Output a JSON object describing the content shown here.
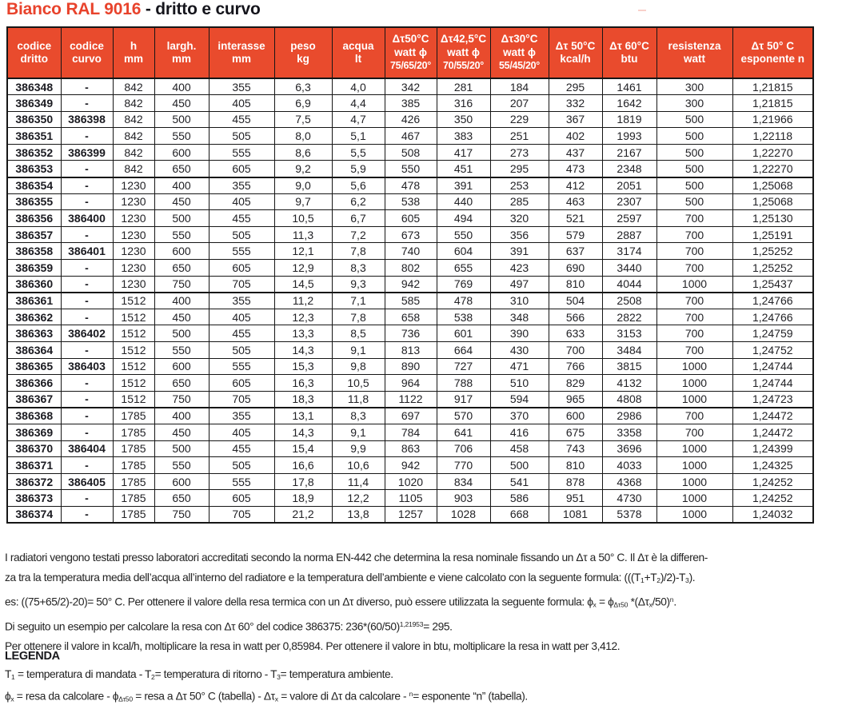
{
  "title": {
    "product": "Bianco RAL 9016",
    "variant": " - dritto e curvo"
  },
  "colors": {
    "header_red": "#e94b2d",
    "title_red": "#e8432c",
    "border_black": "#161616"
  },
  "table": {
    "columns": [
      {
        "id": "codice-dritto",
        "lines": [
          "codice",
          "dritto"
        ],
        "width": 67,
        "bold": true
      },
      {
        "id": "codice-curvo",
        "lines": [
          "codice",
          "curvo"
        ],
        "width": 65,
        "bold": true
      },
      {
        "id": "h-mm",
        "lines": [
          "h",
          "mm"
        ],
        "width": 52,
        "bold": false
      },
      {
        "id": "largh-mm",
        "lines": [
          "largh.",
          "mm"
        ],
        "width": 68,
        "bold": false
      },
      {
        "id": "interasse-mm",
        "lines": [
          "interasse",
          "mm"
        ],
        "width": 82,
        "bold": false
      },
      {
        "id": "peso-kg",
        "lines": [
          "peso",
          "kg"
        ],
        "width": 72,
        "bold": false
      },
      {
        "id": "acqua-lt",
        "lines": [
          "acqua",
          "lt"
        ],
        "width": 66,
        "bold": false
      },
      {
        "id": "watt-dt50",
        "lines": [
          "Δτ50°C",
          "watt ϕ",
          "75/65/20°"
        ],
        "width": 65,
        "bold": false
      },
      {
        "id": "watt-dt425",
        "lines": [
          "Δτ42,5°C",
          "watt ϕ",
          "70/55/20°"
        ],
        "width": 67,
        "bold": false
      },
      {
        "id": "watt-dt30",
        "lines": [
          "Δτ30°C",
          "watt ϕ",
          "55/45/20°"
        ],
        "width": 73,
        "bold": false
      },
      {
        "id": "kcalh-dt50",
        "lines": [
          "Δτ 50°C",
          "kcal/h"
        ],
        "width": 67,
        "bold": false
      },
      {
        "id": "btu-dt60",
        "lines": [
          "Δτ 60°C",
          "btu"
        ],
        "width": 68,
        "bold": false
      },
      {
        "id": "resistenza",
        "lines": [
          "resistenza",
          "watt"
        ],
        "width": 95,
        "bold": false
      },
      {
        "id": "esponente",
        "lines": [
          "Δτ 50° C",
          "esponente n"
        ],
        "width": 101,
        "bold": false
      }
    ],
    "rows": [
      [
        "386348",
        "-",
        "842",
        "400",
        "355",
        "6,3",
        "4,0",
        "342",
        "281",
        "184",
        "295",
        "1461",
        "300",
        "1,21815"
      ],
      [
        "386349",
        "-",
        "842",
        "450",
        "405",
        "6,9",
        "4,4",
        "385",
        "316",
        "207",
        "332",
        "1642",
        "300",
        "1,21815"
      ],
      [
        "386350",
        "386398",
        "842",
        "500",
        "455",
        "7,5",
        "4,7",
        "426",
        "350",
        "229",
        "367",
        "1819",
        "500",
        "1,21966"
      ],
      [
        "386351",
        "-",
        "842",
        "550",
        "505",
        "8,0",
        "5,1",
        "467",
        "383",
        "251",
        "402",
        "1993",
        "500",
        "1,22118"
      ],
      [
        "386352",
        "386399",
        "842",
        "600",
        "555",
        "8,6",
        "5,5",
        "508",
        "417",
        "273",
        "437",
        "2167",
        "500",
        "1,22270"
      ],
      [
        "386353",
        "-",
        "842",
        "650",
        "605",
        "9,2",
        "5,9",
        "550",
        "451",
        "295",
        "473",
        "2348",
        "500",
        "1,22270"
      ],
      [
        "386354",
        "-",
        "1230",
        "400",
        "355",
        "9,0",
        "5,6",
        "478",
        "391",
        "253",
        "412",
        "2051",
        "500",
        "1,25068"
      ],
      [
        "386355",
        "-",
        "1230",
        "450",
        "405",
        "9,7",
        "6,2",
        "538",
        "440",
        "285",
        "463",
        "2307",
        "500",
        "1,25068"
      ],
      [
        "386356",
        "386400",
        "1230",
        "500",
        "455",
        "10,5",
        "6,7",
        "605",
        "494",
        "320",
        "521",
        "2597",
        "700",
        "1,25130"
      ],
      [
        "386357",
        "-",
        "1230",
        "550",
        "505",
        "11,3",
        "7,2",
        "673",
        "550",
        "356",
        "579",
        "2887",
        "700",
        "1,25191"
      ],
      [
        "386358",
        "386401",
        "1230",
        "600",
        "555",
        "12,1",
        "7,8",
        "740",
        "604",
        "391",
        "637",
        "3174",
        "700",
        "1,25252"
      ],
      [
        "386359",
        "-",
        "1230",
        "650",
        "605",
        "12,9",
        "8,3",
        "802",
        "655",
        "423",
        "690",
        "3440",
        "700",
        "1,25252"
      ],
      [
        "386360",
        "-",
        "1230",
        "750",
        "705",
        "14,5",
        "9,3",
        "942",
        "769",
        "497",
        "810",
        "4044",
        "1000",
        "1,25437"
      ],
      [
        "386361",
        "-",
        "1512",
        "400",
        "355",
        "11,2",
        "7,1",
        "585",
        "478",
        "310",
        "504",
        "2508",
        "700",
        "1,24766"
      ],
      [
        "386362",
        "-",
        "1512",
        "450",
        "405",
        "12,3",
        "7,8",
        "658",
        "538",
        "348",
        "566",
        "2822",
        "700",
        "1,24766"
      ],
      [
        "386363",
        "386402",
        "1512",
        "500",
        "455",
        "13,3",
        "8,5",
        "736",
        "601",
        "390",
        "633",
        "3153",
        "700",
        "1,24759"
      ],
      [
        "386364",
        "-",
        "1512",
        "550",
        "505",
        "14,3",
        "9,1",
        "813",
        "664",
        "430",
        "700",
        "3484",
        "700",
        "1,24752"
      ],
      [
        "386365",
        "386403",
        "1512",
        "600",
        "555",
        "15,3",
        "9,8",
        "890",
        "727",
        "471",
        "766",
        "3815",
        "1000",
        "1,24744"
      ],
      [
        "386366",
        "-",
        "1512",
        "650",
        "605",
        "16,3",
        "10,5",
        "964",
        "788",
        "510",
        "829",
        "4132",
        "1000",
        "1,24744"
      ],
      [
        "386367",
        "-",
        "1512",
        "750",
        "705",
        "18,3",
        "11,8",
        "1122",
        "917",
        "594",
        "965",
        "4808",
        "1000",
        "1,24723"
      ],
      [
        "386368",
        "-",
        "1785",
        "400",
        "355",
        "13,1",
        "8,3",
        "697",
        "570",
        "370",
        "600",
        "2986",
        "700",
        "1,24472"
      ],
      [
        "386369",
        "-",
        "1785",
        "450",
        "405",
        "14,3",
        "9,1",
        "784",
        "641",
        "416",
        "675",
        "3358",
        "700",
        "1,24472"
      ],
      [
        "386370",
        "386404",
        "1785",
        "500",
        "455",
        "15,4",
        "9,9",
        "863",
        "706",
        "458",
        "743",
        "3696",
        "1000",
        "1,24399"
      ],
      [
        "386371",
        "-",
        "1785",
        "550",
        "505",
        "16,6",
        "10,6",
        "942",
        "770",
        "500",
        "810",
        "4033",
        "1000",
        "1,24325"
      ],
      [
        "386372",
        "386405",
        "1785",
        "600",
        "555",
        "17,8",
        "11,4",
        "1020",
        "834",
        "541",
        "878",
        "4368",
        "1000",
        "1,24252"
      ],
      [
        "386373",
        "-",
        "1785",
        "650",
        "605",
        "18,9",
        "12,2",
        "1105",
        "903",
        "586",
        "951",
        "4730",
        "1000",
        "1,24252"
      ],
      [
        "386374",
        "-",
        "1785",
        "750",
        "705",
        "21,2",
        "13,8",
        "1257",
        "1028",
        "668",
        "1081",
        "5378",
        "1000",
        "1,24032"
      ]
    ]
  },
  "footnotes": {
    "lines": [
      [
        {
          "t": "I radiatori vengono testati presso laboratori accreditati secondo la norma EN-442 che determina la resa nominale fissando un Δτ a 50° C. Il Δτ è la differen-"
        }
      ],
      [
        {
          "t": "za tra la temperatura media dell’acqua all’interno del radiatore e la temperatura dell’ambiente e viene calcolato con la seguente formula: (((T"
        },
        {
          "t": "1",
          "s": "sub"
        },
        {
          "t": "+T"
        },
        {
          "t": "2",
          "s": "sub"
        },
        {
          "t": ")/2)-T"
        },
        {
          "t": "3",
          "s": "sub"
        },
        {
          "t": ")."
        }
      ],
      [
        {
          "t": "es: ((75+65/2)-20)= 50° C. Per ottenere il valore della resa termica con un Δτ diverso, può essere utilizzata la seguente formula: ϕ"
        },
        {
          "t": "x",
          "s": "sub"
        },
        {
          "t": " = ϕ"
        },
        {
          "t": "Δτ50",
          "s": "sub"
        },
        {
          "t": " *(Δτ"
        },
        {
          "t": "x",
          "s": "sub"
        },
        {
          "t": "/50)"
        },
        {
          "t": "n",
          "s": "sup"
        },
        {
          "t": "."
        }
      ],
      [
        {
          "t": "Di seguito un esempio per calcolare la resa con Δτ 60° del codice 386375: 236*(60/50)"
        },
        {
          "t": "1,21953",
          "s": "sup"
        },
        {
          "t": "= 295."
        }
      ],
      [
        {
          "t": "Per ottenere il valore in kcal/h, moltiplicare la resa in watt per 0,85984. Per ottenere il valore in btu, moltiplicare la resa in watt per 3,412."
        }
      ]
    ]
  },
  "legend": {
    "heading": "LEGENDA",
    "lines": [
      [
        {
          "t": " T"
        },
        {
          "t": "1",
          "s": "sub"
        },
        {
          "t": " = temperatura di mandata - T"
        },
        {
          "t": "2",
          "s": "sub"
        },
        {
          "t": "= temperatura di ritorno - T"
        },
        {
          "t": "3",
          "s": "sub"
        },
        {
          "t": "= temperatura ambiente."
        }
      ],
      [
        {
          "t": "ϕ"
        },
        {
          "t": "x",
          "s": "sub"
        },
        {
          "t": " = resa da calcolare - ϕ"
        },
        {
          "t": "Δτ50",
          "s": "sub"
        },
        {
          "t": " = resa a Δτ 50° C (tabella) - Δτ"
        },
        {
          "t": "x",
          "s": "sub"
        },
        {
          "t": " = valore di Δτ da calcolare - "
        },
        {
          "t": "n",
          "s": "sup"
        },
        {
          "t": "= esponente “n” (tabella)."
        }
      ]
    ]
  }
}
